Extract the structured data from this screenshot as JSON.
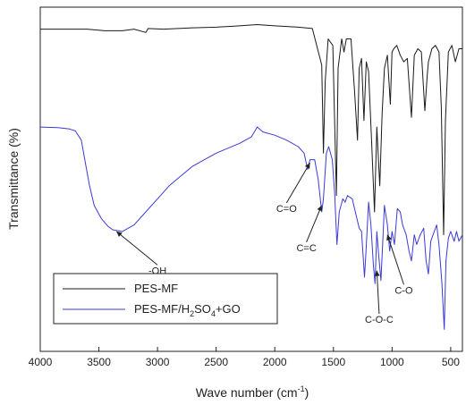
{
  "chart_data": {
    "type": "line",
    "xlabel": "Wave number (cm",
    "xlabel_sup": "-1",
    "xlabel_end": ")",
    "ylabel": "Transmittance (%)",
    "xlim": [
      4000,
      400
    ],
    "x_reversed": true,
    "y_ticks_shown": false,
    "x_ticks": [
      4000,
      3500,
      3000,
      2500,
      2000,
      1500,
      1000,
      500
    ],
    "legend": {
      "position": "bottom-left"
    },
    "series": [
      {
        "name": "PES-MF",
        "color": "#1a1a1a",
        "points": [
          [
            4000,
            96.0
          ],
          [
            3800,
            96.0
          ],
          [
            3600,
            96.0
          ],
          [
            3450,
            95.5
          ],
          [
            3300,
            95.5
          ],
          [
            3200,
            96.0
          ],
          [
            3100,
            95.0
          ],
          [
            3080,
            96.2
          ],
          [
            2950,
            96.0
          ],
          [
            2700,
            96.4
          ],
          [
            2500,
            96.6
          ],
          [
            2300,
            97.0
          ],
          [
            2150,
            97.4
          ],
          [
            2000,
            97.0
          ],
          [
            1800,
            96.6
          ],
          [
            1680,
            96.2
          ],
          [
            1600,
            85
          ],
          [
            1585,
            58
          ],
          [
            1570,
            80
          ],
          [
            1545,
            93
          ],
          [
            1505,
            91
          ],
          [
            1490,
            68
          ],
          [
            1475,
            45
          ],
          [
            1460,
            84
          ],
          [
            1430,
            93
          ],
          [
            1410,
            89
          ],
          [
            1390,
            93
          ],
          [
            1350,
            93
          ],
          [
            1320,
            77
          ],
          [
            1295,
            62
          ],
          [
            1280,
            84
          ],
          [
            1260,
            87
          ],
          [
            1240,
            68
          ],
          [
            1220,
            86
          ],
          [
            1200,
            83
          ],
          [
            1175,
            62
          ],
          [
            1150,
            40
          ],
          [
            1130,
            66
          ],
          [
            1105,
            48
          ],
          [
            1085,
            70
          ],
          [
            1065,
            84
          ],
          [
            1040,
            88
          ],
          [
            1015,
            73
          ],
          [
            1000,
            89
          ],
          [
            985,
            90
          ],
          [
            960,
            91
          ],
          [
            930,
            88
          ],
          [
            900,
            86
          ],
          [
            870,
            87
          ],
          [
            835,
            69
          ],
          [
            810,
            88
          ],
          [
            780,
            90
          ],
          [
            750,
            89
          ],
          [
            720,
            71
          ],
          [
            700,
            82
          ],
          [
            690,
            86
          ],
          [
            660,
            90
          ],
          [
            630,
            91
          ],
          [
            600,
            89
          ],
          [
            580,
            72
          ],
          [
            560,
            33
          ],
          [
            545,
            68
          ],
          [
            520,
            89
          ],
          [
            490,
            91
          ],
          [
            460,
            86
          ],
          [
            430,
            90
          ],
          [
            400,
            90
          ]
        ]
      },
      {
        "name": "PES-MF/H2SO4+GO",
        "label_main": "PES-MF/H",
        "label_sub1": "2",
        "label_mid": "SO",
        "label_sub2": "4",
        "label_end": "+GO",
        "color": "#3a3ad8",
        "points": [
          [
            4000,
            66.0
          ],
          [
            3850,
            65.8
          ],
          [
            3750,
            65.4
          ],
          [
            3700,
            64.8
          ],
          [
            3650,
            62
          ],
          [
            3620,
            56
          ],
          [
            3580,
            48
          ],
          [
            3540,
            42
          ],
          [
            3480,
            38
          ],
          [
            3420,
            35.5
          ],
          [
            3380,
            34.5
          ],
          [
            3300,
            34.0
          ],
          [
            3200,
            36
          ],
          [
            3100,
            40
          ],
          [
            3000,
            44
          ],
          [
            2900,
            48
          ],
          [
            2800,
            51
          ],
          [
            2700,
            54
          ],
          [
            2600,
            56
          ],
          [
            2500,
            58
          ],
          [
            2400,
            59.5
          ],
          [
            2300,
            61
          ],
          [
            2200,
            63
          ],
          [
            2150,
            66
          ],
          [
            2100,
            64.5
          ],
          [
            2000,
            63.5
          ],
          [
            1900,
            62
          ],
          [
            1800,
            60
          ],
          [
            1750,
            58
          ],
          [
            1720,
            53
          ],
          [
            1700,
            56
          ],
          [
            1660,
            56
          ],
          [
            1630,
            50
          ],
          [
            1600,
            40
          ],
          [
            1585,
            44
          ],
          [
            1560,
            58
          ],
          [
            1540,
            60
          ],
          [
            1510,
            56
          ],
          [
            1490,
            46
          ],
          [
            1470,
            30
          ],
          [
            1450,
            40
          ],
          [
            1420,
            44
          ],
          [
            1400,
            43
          ],
          [
            1380,
            45
          ],
          [
            1340,
            44
          ],
          [
            1300,
            38
          ],
          [
            1280,
            35
          ],
          [
            1260,
            34
          ],
          [
            1235,
            20
          ],
          [
            1225,
            26
          ],
          [
            1200,
            43
          ],
          [
            1180,
            36
          ],
          [
            1160,
            24
          ],
          [
            1145,
            18
          ],
          [
            1130,
            34
          ],
          [
            1115,
            27
          ],
          [
            1095,
            19
          ],
          [
            1080,
            30
          ],
          [
            1065,
            42
          ],
          [
            1040,
            36
          ],
          [
            1020,
            28
          ],
          [
            1000,
            34
          ],
          [
            980,
            30
          ],
          [
            955,
            41
          ],
          [
            930,
            40
          ],
          [
            910,
            36
          ],
          [
            880,
            33
          ],
          [
            855,
            28
          ],
          [
            835,
            25
          ],
          [
            810,
            33
          ],
          [
            790,
            30
          ],
          [
            760,
            33
          ],
          [
            730,
            35
          ],
          [
            710,
            25
          ],
          [
            690,
            21
          ],
          [
            670,
            31
          ],
          [
            650,
            33
          ],
          [
            620,
            36
          ],
          [
            600,
            30
          ],
          [
            575,
            18
          ],
          [
            555,
            4
          ],
          [
            540,
            25
          ],
          [
            520,
            32
          ],
          [
            500,
            34
          ],
          [
            470,
            31
          ],
          [
            450,
            34
          ],
          [
            430,
            31
          ],
          [
            400,
            33
          ]
        ]
      }
    ],
    "annotations": [
      {
        "text": "-OH",
        "x": 3350,
        "y": 34,
        "label_x": 3000,
        "label_y": 21
      },
      {
        "text": "C=O",
        "x": 1700,
        "y": 55,
        "label_x": 1900,
        "label_y": 40
      },
      {
        "text": "C=C",
        "x": 1600,
        "y": 42,
        "label_x": 1730,
        "label_y": 28
      },
      {
        "text": "C-O-C",
        "x": 1130,
        "y": 22,
        "label_x": 1110,
        "label_y": 6
      },
      {
        "text": "C-O",
        "x": 1040,
        "y": 33,
        "label_x": 900,
        "label_y": 15
      }
    ]
  }
}
